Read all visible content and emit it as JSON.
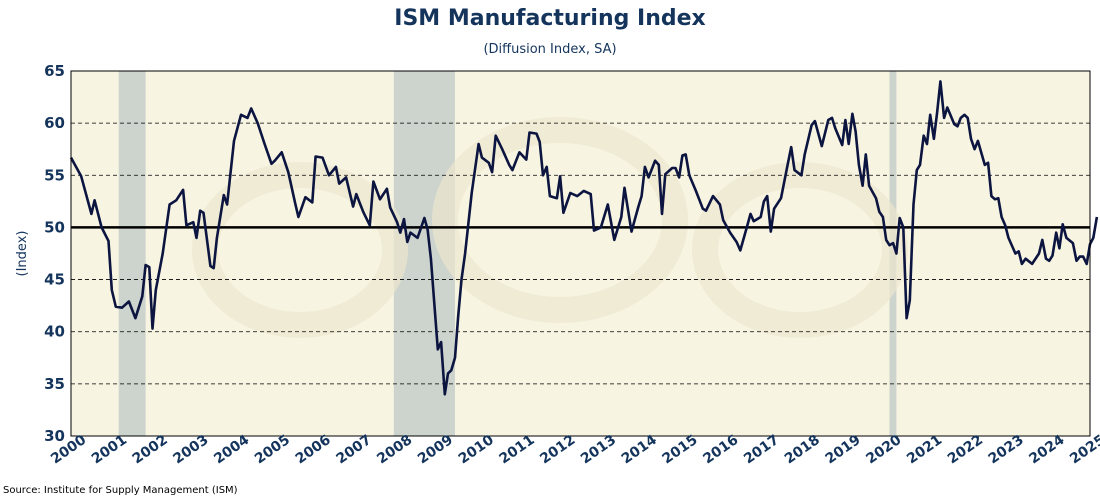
{
  "title": "ISM Manufacturing Index",
  "subtitle": "(Diffusion Index, SA)",
  "source": "Source: Institute for Supply Management (ISM)",
  "chart_data": {
    "type": "line",
    "title": "ISM Manufacturing Index",
    "subtitle": "(Diffusion Index, SA)",
    "xlabel": "",
    "ylabel": "(Index)",
    "xlim": [
      2000,
      2025
    ],
    "ylim": [
      30,
      65
    ],
    "yticks": [
      30,
      35,
      40,
      45,
      50,
      55,
      60,
      65
    ],
    "xticks": [
      2000,
      2001,
      2002,
      2003,
      2004,
      2005,
      2006,
      2007,
      2008,
      2009,
      2010,
      2011,
      2012,
      2013,
      2014,
      2015,
      2016,
      2017,
      2018,
      2019,
      2020,
      2021,
      2022,
      2023,
      2024,
      2025
    ],
    "grid": "horizontal-dashed",
    "reference_line": 50,
    "recessions": [
      [
        2001.17,
        2001.83
      ],
      [
        2007.92,
        2009.42
      ],
      [
        2020.08,
        2020.25
      ]
    ],
    "colors": {
      "line": "#0c1440",
      "background": "#f7f4e2",
      "recession": "#c6ccc9",
      "axis_text": "#14345c"
    },
    "series": [
      {
        "name": "",
        "points": [
          [
            2000.0,
            56.7
          ],
          [
            2000.25,
            54.9
          ],
          [
            2000.5,
            51.3
          ],
          [
            2000.58,
            52.6
          ],
          [
            2000.75,
            50.0
          ],
          [
            2000.92,
            48.7
          ],
          [
            2001.0,
            44.0
          ],
          [
            2001.1,
            42.4
          ],
          [
            2001.25,
            42.3
          ],
          [
            2001.42,
            42.9
          ],
          [
            2001.58,
            41.3
          ],
          [
            2001.75,
            43.4
          ],
          [
            2001.83,
            46.4
          ],
          [
            2001.92,
            46.2
          ],
          [
            2002.0,
            40.3
          ],
          [
            2002.08,
            44.0
          ],
          [
            2002.25,
            47.5
          ],
          [
            2002.42,
            52.2
          ],
          [
            2002.58,
            52.6
          ],
          [
            2002.75,
            53.6
          ],
          [
            2002.83,
            50.2
          ],
          [
            2003.0,
            50.5
          ],
          [
            2003.08,
            49.0
          ],
          [
            2003.17,
            51.6
          ],
          [
            2003.25,
            51.4
          ],
          [
            2003.42,
            46.3
          ],
          [
            2003.5,
            46.1
          ],
          [
            2003.58,
            49.0
          ],
          [
            2003.75,
            53.1
          ],
          [
            2003.83,
            52.2
          ],
          [
            2004.0,
            58.3
          ],
          [
            2004.17,
            60.8
          ],
          [
            2004.33,
            60.5
          ],
          [
            2004.42,
            61.4
          ],
          [
            2004.58,
            60.0
          ],
          [
            2004.75,
            58.0
          ],
          [
            2004.92,
            56.1
          ],
          [
            2005.0,
            56.4
          ],
          [
            2005.17,
            57.2
          ],
          [
            2005.33,
            55.3
          ],
          [
            2005.5,
            52.3
          ],
          [
            2005.58,
            51.0
          ],
          [
            2005.75,
            52.9
          ],
          [
            2005.92,
            52.4
          ],
          [
            2006.0,
            56.8
          ],
          [
            2006.17,
            56.7
          ],
          [
            2006.33,
            55.0
          ],
          [
            2006.5,
            55.8
          ],
          [
            2006.58,
            54.2
          ],
          [
            2006.75,
            54.8
          ],
          [
            2006.92,
            52.0
          ],
          [
            2007.0,
            53.2
          ],
          [
            2007.17,
            51.5
          ],
          [
            2007.33,
            50.2
          ],
          [
            2007.42,
            54.4
          ],
          [
            2007.58,
            52.7
          ],
          [
            2007.75,
            53.7
          ],
          [
            2007.83,
            51.9
          ],
          [
            2008.0,
            50.5
          ],
          [
            2008.08,
            49.5
          ],
          [
            2008.17,
            50.8
          ],
          [
            2008.25,
            48.6
          ],
          [
            2008.33,
            49.5
          ],
          [
            2008.5,
            49.0
          ],
          [
            2008.67,
            50.9
          ],
          [
            2008.75,
            49.8
          ],
          [
            2008.83,
            47.0
          ],
          [
            2009.0,
            38.3
          ],
          [
            2009.08,
            39.0
          ],
          [
            2009.17,
            34.0
          ],
          [
            2009.25,
            36.0
          ],
          [
            2009.33,
            36.3
          ],
          [
            2009.42,
            37.5
          ],
          [
            2009.5,
            41.5
          ],
          [
            2009.58,
            45.0
          ],
          [
            2009.67,
            47.5
          ],
          [
            2009.83,
            53.3
          ],
          [
            2010.0,
            58.0
          ],
          [
            2010.08,
            56.7
          ],
          [
            2010.25,
            56.2
          ],
          [
            2010.33,
            55.3
          ],
          [
            2010.42,
            58.8
          ],
          [
            2010.58,
            57.5
          ],
          [
            2010.75,
            56.0
          ],
          [
            2010.83,
            55.5
          ],
          [
            2011.0,
            57.2
          ],
          [
            2011.17,
            56.5
          ],
          [
            2011.25,
            59.1
          ],
          [
            2011.42,
            59.0
          ],
          [
            2011.5,
            58.2
          ],
          [
            2011.58,
            55.0
          ],
          [
            2011.67,
            55.8
          ],
          [
            2011.75,
            53.0
          ],
          [
            2011.92,
            52.8
          ],
          [
            2012.0,
            54.9
          ],
          [
            2012.08,
            51.4
          ],
          [
            2012.25,
            53.3
          ],
          [
            2012.42,
            53.0
          ],
          [
            2012.58,
            53.5
          ],
          [
            2012.75,
            53.2
          ],
          [
            2012.83,
            49.7
          ],
          [
            2013.0,
            50.0
          ],
          [
            2013.17,
            52.2
          ],
          [
            2013.33,
            48.8
          ],
          [
            2013.5,
            51.0
          ],
          [
            2013.58,
            53.8
          ],
          [
            2013.75,
            49.6
          ],
          [
            2013.92,
            52.0
          ],
          [
            2014.0,
            53.0
          ],
          [
            2014.08,
            55.8
          ],
          [
            2014.17,
            54.8
          ],
          [
            2014.33,
            56.4
          ],
          [
            2014.42,
            56.0
          ],
          [
            2014.5,
            51.3
          ],
          [
            2014.58,
            55.1
          ],
          [
            2014.75,
            55.7
          ],
          [
            2014.83,
            55.7
          ],
          [
            2014.92,
            54.8
          ],
          [
            2015.0,
            56.9
          ],
          [
            2015.08,
            57.0
          ],
          [
            2015.17,
            55.0
          ],
          [
            2015.33,
            53.5
          ],
          [
            2015.5,
            51.8
          ],
          [
            2015.58,
            51.6
          ],
          [
            2015.75,
            53.0
          ],
          [
            2015.92,
            52.2
          ],
          [
            2016.0,
            50.7
          ],
          [
            2016.17,
            49.5
          ],
          [
            2016.33,
            48.6
          ],
          [
            2016.42,
            47.8
          ],
          [
            2016.58,
            50.0
          ],
          [
            2016.67,
            51.3
          ],
          [
            2016.75,
            50.6
          ],
          [
            2016.92,
            51.0
          ],
          [
            2017.0,
            52.5
          ],
          [
            2017.08,
            53.0
          ],
          [
            2017.17,
            49.6
          ],
          [
            2017.25,
            51.8
          ],
          [
            2017.42,
            52.8
          ],
          [
            2017.58,
            56.0
          ],
          [
            2017.67,
            57.7
          ],
          [
            2017.75,
            55.5
          ],
          [
            2017.92,
            55.0
          ],
          [
            2018.0,
            57.0
          ],
          [
            2018.17,
            59.8
          ],
          [
            2018.25,
            60.2
          ],
          [
            2018.42,
            57.8
          ],
          [
            2018.58,
            60.3
          ],
          [
            2018.67,
            60.5
          ],
          [
            2018.75,
            59.5
          ],
          [
            2018.92,
            57.9
          ],
          [
            2019.0,
            60.3
          ],
          [
            2019.08,
            58.0
          ],
          [
            2019.17,
            60.9
          ],
          [
            2019.25,
            59.2
          ],
          [
            2019.33,
            56.0
          ],
          [
            2019.42,
            54.0
          ],
          [
            2019.5,
            57.0
          ],
          [
            2019.58,
            54.0
          ],
          [
            2019.75,
            52.8
          ],
          [
            2019.83,
            51.5
          ],
          [
            2019.92,
            51.0
          ],
          [
            2020.0,
            48.8
          ],
          [
            2020.08,
            48.3
          ],
          [
            2020.17,
            48.5
          ],
          [
            2020.25,
            47.5
          ],
          [
            2020.33,
            50.9
          ],
          [
            2020.42,
            50.0
          ],
          [
            2020.5,
            41.3
          ],
          [
            2020.58,
            43.0
          ],
          [
            2020.67,
            52.2
          ],
          [
            2020.75,
            55.5
          ],
          [
            2020.83,
            56.0
          ],
          [
            2020.92,
            58.8
          ],
          [
            2021.0,
            58.0
          ],
          [
            2021.08,
            60.8
          ],
          [
            2021.17,
            58.5
          ],
          [
            2021.25,
            61.0
          ],
          [
            2021.33,
            64.0
          ],
          [
            2021.42,
            60.5
          ],
          [
            2021.5,
            61.5
          ],
          [
            2021.67,
            59.9
          ],
          [
            2021.75,
            59.7
          ],
          [
            2021.83,
            60.5
          ],
          [
            2021.92,
            60.8
          ],
          [
            2022.0,
            60.5
          ],
          [
            2022.08,
            58.5
          ],
          [
            2022.17,
            57.5
          ],
          [
            2022.25,
            58.3
          ],
          [
            2022.42,
            56.0
          ],
          [
            2022.5,
            56.2
          ],
          [
            2022.58,
            53.0
          ],
          [
            2022.67,
            52.7
          ],
          [
            2022.75,
            52.8
          ],
          [
            2022.83,
            51.0
          ],
          [
            2022.92,
            50.2
          ],
          [
            2023.0,
            49.0
          ],
          [
            2023.17,
            47.5
          ],
          [
            2023.25,
            47.7
          ],
          [
            2023.33,
            46.5
          ],
          [
            2023.42,
            47.0
          ],
          [
            2023.58,
            46.5
          ],
          [
            2023.75,
            47.5
          ],
          [
            2023.83,
            48.8
          ],
          [
            2023.92,
            47.0
          ],
          [
            2024.0,
            46.8
          ],
          [
            2024.08,
            47.3
          ],
          [
            2024.17,
            49.5
          ],
          [
            2024.25,
            48.0
          ],
          [
            2024.33,
            50.3
          ],
          [
            2024.42,
            49.0
          ],
          [
            2024.58,
            48.5
          ],
          [
            2024.67,
            46.8
          ],
          [
            2024.75,
            47.2
          ],
          [
            2024.83,
            47.2
          ],
          [
            2024.92,
            46.5
          ],
          [
            2025.0,
            48.4
          ],
          [
            2025.08,
            49.0
          ],
          [
            2025.17,
            51.0
          ]
        ]
      }
    ]
  }
}
